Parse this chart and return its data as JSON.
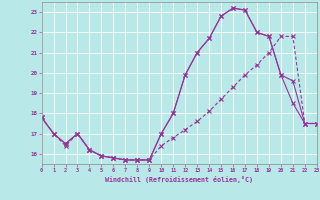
{
  "xlabel": "Windchill (Refroidissement éolien,°C)",
  "background_color": "#b8e8e8",
  "grid_color": "#ffffff",
  "line_color": "#993399",
  "x_hours": [
    0,
    1,
    2,
    3,
    4,
    5,
    6,
    7,
    8,
    9,
    10,
    11,
    12,
    13,
    14,
    15,
    16,
    17,
    18,
    19,
    20,
    21,
    22,
    23
  ],
  "line1": [
    17.8,
    17.0,
    16.5,
    17.0,
    16.2,
    15.9,
    15.8,
    15.7,
    15.7,
    15.7,
    17.0,
    18.0,
    19.9,
    21.0,
    21.7,
    22.8,
    23.2,
    23.1,
    22.0,
    21.8,
    19.9,
    18.5,
    17.5,
    17.5
  ],
  "line2": [
    17.8,
    17.0,
    16.5,
    17.0,
    16.2,
    15.9,
    15.8,
    15.7,
    15.7,
    15.7,
    17.0,
    18.0,
    19.9,
    21.0,
    21.7,
    22.8,
    23.2,
    23.1,
    22.0,
    21.8,
    19.9,
    19.6,
    17.5,
    17.5
  ],
  "line3": [
    17.8,
    17.0,
    16.4,
    17.0,
    16.2,
    15.9,
    15.8,
    15.7,
    15.7,
    15.7,
    16.4,
    16.8,
    17.2,
    17.6,
    18.1,
    18.7,
    19.3,
    19.9,
    20.4,
    21.0,
    21.8,
    21.8,
    17.5,
    17.5
  ],
  "xlim": [
    0,
    23
  ],
  "ylim": [
    15.5,
    23.5
  ],
  "yticks": [
    16,
    17,
    18,
    19,
    20,
    21,
    22,
    23
  ],
  "xticks": [
    0,
    1,
    2,
    3,
    4,
    5,
    6,
    7,
    8,
    9,
    10,
    11,
    12,
    13,
    14,
    15,
    16,
    17,
    18,
    19,
    20,
    21,
    22,
    23
  ]
}
